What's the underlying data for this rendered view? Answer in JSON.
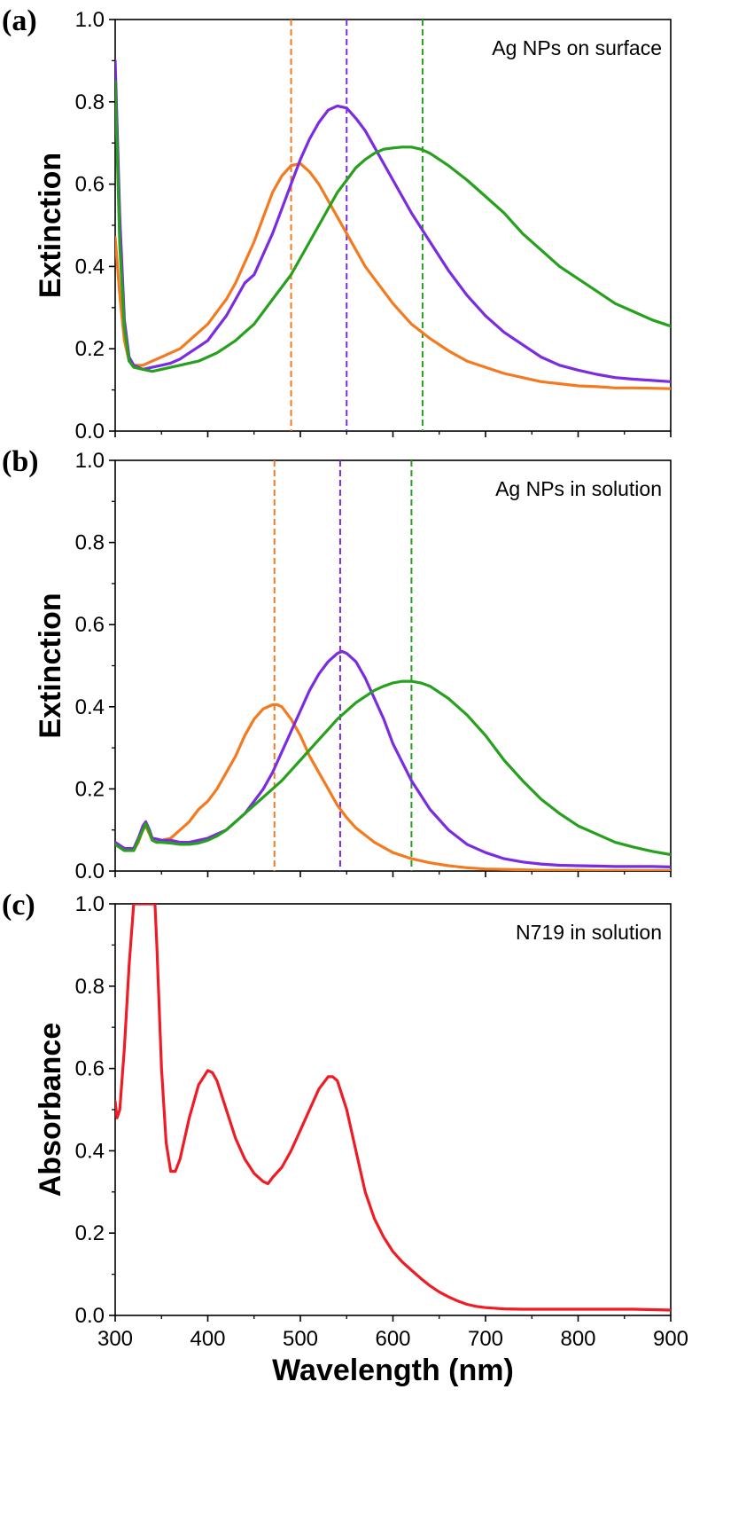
{
  "chart_data": [
    {
      "type": "line",
      "panel_label": "(a)",
      "annotation": "Ag NPs on surface",
      "ylabel": "Extinction",
      "xlabel": "",
      "xlim": [
        300,
        900
      ],
      "ylim": [
        0,
        1
      ],
      "xticks": [
        "300",
        "400",
        "500",
        "600",
        "700",
        "800",
        "900"
      ],
      "yticks": [
        "0.0",
        "0.2",
        "0.4",
        "0.6",
        "0.8",
        "1.0"
      ],
      "show_x_tick_labels": false,
      "grid": false,
      "series": [
        {
          "color": "#f47a20",
          "x": [
            300,
            305,
            310,
            315,
            320,
            330,
            340,
            350,
            360,
            370,
            380,
            390,
            400,
            410,
            420,
            430,
            440,
            450,
            460,
            470,
            480,
            490,
            500,
            510,
            520,
            530,
            540,
            550,
            560,
            570,
            580,
            600,
            620,
            640,
            660,
            680,
            700,
            720,
            740,
            760,
            780,
            800,
            820,
            840,
            860,
            880,
            900
          ],
          "y": [
            0.47,
            0.33,
            0.22,
            0.17,
            0.16,
            0.16,
            0.17,
            0.18,
            0.19,
            0.2,
            0.22,
            0.24,
            0.26,
            0.29,
            0.32,
            0.36,
            0.41,
            0.46,
            0.52,
            0.58,
            0.62,
            0.645,
            0.65,
            0.63,
            0.6,
            0.56,
            0.52,
            0.48,
            0.44,
            0.4,
            0.37,
            0.31,
            0.26,
            0.225,
            0.195,
            0.17,
            0.155,
            0.14,
            0.13,
            0.12,
            0.115,
            0.11,
            0.108,
            0.105,
            0.105,
            0.104,
            0.103
          ]
        },
        {
          "color": "#7b2be0",
          "x": [
            300,
            305,
            310,
            315,
            320,
            330,
            340,
            350,
            360,
            370,
            380,
            390,
            400,
            410,
            420,
            430,
            440,
            450,
            460,
            470,
            480,
            490,
            500,
            510,
            520,
            530,
            540,
            550,
            560,
            570,
            580,
            600,
            620,
            640,
            660,
            680,
            700,
            720,
            740,
            760,
            780,
            800,
            820,
            840,
            860,
            880,
            900
          ],
          "y": [
            0.9,
            0.52,
            0.27,
            0.18,
            0.16,
            0.15,
            0.155,
            0.16,
            0.165,
            0.175,
            0.19,
            0.205,
            0.22,
            0.25,
            0.28,
            0.32,
            0.36,
            0.38,
            0.43,
            0.48,
            0.54,
            0.6,
            0.66,
            0.71,
            0.75,
            0.78,
            0.79,
            0.785,
            0.76,
            0.73,
            0.69,
            0.61,
            0.53,
            0.46,
            0.39,
            0.33,
            0.28,
            0.24,
            0.21,
            0.18,
            0.16,
            0.148,
            0.138,
            0.13,
            0.126,
            0.123,
            0.12
          ]
        },
        {
          "color": "#27a01e",
          "x": [
            300,
            305,
            310,
            315,
            320,
            330,
            340,
            350,
            360,
            370,
            380,
            390,
            400,
            410,
            420,
            430,
            440,
            450,
            460,
            470,
            480,
            490,
            500,
            510,
            520,
            530,
            540,
            550,
            560,
            570,
            580,
            590,
            600,
            610,
            620,
            630,
            640,
            650,
            660,
            680,
            700,
            720,
            740,
            760,
            780,
            800,
            820,
            840,
            860,
            880,
            900
          ],
          "y": [
            0.85,
            0.45,
            0.25,
            0.17,
            0.155,
            0.15,
            0.145,
            0.15,
            0.155,
            0.16,
            0.165,
            0.17,
            0.18,
            0.19,
            0.205,
            0.22,
            0.24,
            0.26,
            0.29,
            0.32,
            0.35,
            0.38,
            0.42,
            0.46,
            0.5,
            0.54,
            0.58,
            0.61,
            0.64,
            0.66,
            0.675,
            0.685,
            0.688,
            0.69,
            0.69,
            0.685,
            0.675,
            0.66,
            0.645,
            0.61,
            0.57,
            0.53,
            0.48,
            0.44,
            0.4,
            0.37,
            0.34,
            0.31,
            0.29,
            0.27,
            0.255
          ]
        }
      ],
      "vlines": [
        {
          "x": 490,
          "color": "#f47a20"
        },
        {
          "x": 550,
          "color": "#7b2be0"
        },
        {
          "x": 632,
          "color": "#27a01e"
        }
      ]
    },
    {
      "type": "line",
      "panel_label": "(b)",
      "annotation": "Ag NPs in solution",
      "ylabel": "Extinction",
      "xlabel": "",
      "xlim": [
        300,
        900
      ],
      "ylim": [
        0,
        1
      ],
      "xticks": [
        "300",
        "400",
        "500",
        "600",
        "700",
        "800",
        "900"
      ],
      "yticks": [
        "0.0",
        "0.2",
        "0.4",
        "0.6",
        "0.8",
        "1.0"
      ],
      "show_x_tick_labels": false,
      "grid": false,
      "series": [
        {
          "color": "#f47a20",
          "x": [
            300,
            310,
            320,
            325,
            330,
            333,
            337,
            340,
            345,
            350,
            360,
            370,
            380,
            390,
            400,
            410,
            420,
            430,
            440,
            450,
            460,
            470,
            475,
            480,
            490,
            500,
            510,
            520,
            530,
            540,
            550,
            560,
            580,
            600,
            620,
            640,
            660,
            680,
            700,
            720,
            740,
            760,
            780,
            800,
            820,
            840,
            860,
            880,
            900
          ],
          "y": [
            0.065,
            0.05,
            0.05,
            0.07,
            0.1,
            0.11,
            0.09,
            0.075,
            0.07,
            0.075,
            0.08,
            0.1,
            0.12,
            0.15,
            0.17,
            0.2,
            0.24,
            0.28,
            0.33,
            0.37,
            0.395,
            0.405,
            0.405,
            0.4,
            0.37,
            0.33,
            0.28,
            0.24,
            0.2,
            0.16,
            0.13,
            0.105,
            0.07,
            0.045,
            0.03,
            0.02,
            0.013,
            0.008,
            0.005,
            0.004,
            0.003,
            0.002,
            0.002,
            0.002,
            0.001,
            0.001,
            0.001,
            0.001,
            0.001
          ]
        },
        {
          "color": "#7b2be0",
          "x": [
            300,
            310,
            320,
            325,
            330,
            333,
            337,
            340,
            345,
            350,
            360,
            370,
            380,
            390,
            400,
            410,
            420,
            430,
            440,
            450,
            460,
            470,
            480,
            490,
            500,
            510,
            520,
            530,
            540,
            545,
            550,
            560,
            570,
            580,
            590,
            600,
            620,
            640,
            660,
            680,
            700,
            720,
            740,
            760,
            780,
            800,
            820,
            840,
            860,
            880,
            900
          ],
          "y": [
            0.07,
            0.055,
            0.055,
            0.08,
            0.11,
            0.12,
            0.1,
            0.08,
            0.078,
            0.075,
            0.075,
            0.07,
            0.07,
            0.075,
            0.08,
            0.09,
            0.1,
            0.12,
            0.14,
            0.17,
            0.2,
            0.24,
            0.29,
            0.34,
            0.39,
            0.44,
            0.48,
            0.51,
            0.53,
            0.535,
            0.53,
            0.51,
            0.47,
            0.42,
            0.37,
            0.31,
            0.22,
            0.15,
            0.1,
            0.065,
            0.045,
            0.03,
            0.022,
            0.017,
            0.014,
            0.013,
            0.012,
            0.011,
            0.011,
            0.011,
            0.01
          ]
        },
        {
          "color": "#27a01e",
          "x": [
            300,
            310,
            320,
            325,
            330,
            333,
            337,
            340,
            345,
            350,
            360,
            370,
            380,
            390,
            400,
            410,
            420,
            430,
            440,
            450,
            460,
            470,
            480,
            490,
            500,
            510,
            520,
            530,
            540,
            550,
            560,
            570,
            580,
            590,
            600,
            610,
            620,
            630,
            640,
            660,
            680,
            700,
            720,
            740,
            760,
            780,
            800,
            820,
            840,
            860,
            880,
            900
          ],
          "y": [
            0.065,
            0.05,
            0.05,
            0.075,
            0.1,
            0.115,
            0.095,
            0.075,
            0.07,
            0.07,
            0.068,
            0.065,
            0.065,
            0.068,
            0.075,
            0.085,
            0.1,
            0.12,
            0.14,
            0.16,
            0.18,
            0.2,
            0.22,
            0.245,
            0.27,
            0.295,
            0.32,
            0.345,
            0.37,
            0.39,
            0.41,
            0.425,
            0.44,
            0.45,
            0.458,
            0.462,
            0.462,
            0.458,
            0.45,
            0.42,
            0.38,
            0.33,
            0.27,
            0.22,
            0.175,
            0.14,
            0.11,
            0.09,
            0.07,
            0.058,
            0.048,
            0.04
          ]
        }
      ],
      "vlines": [
        {
          "x": 472,
          "color": "#f47a20"
        },
        {
          "x": 543,
          "color": "#7b2be0"
        },
        {
          "x": 620,
          "color": "#27a01e"
        }
      ]
    },
    {
      "type": "line",
      "panel_label": "(c)",
      "annotation": "N719 in solution",
      "ylabel": "Absorbance",
      "xlabel": "Wavelength (nm)",
      "xlim": [
        300,
        900
      ],
      "ylim": [
        0,
        1
      ],
      "xticks": [
        "300",
        "400",
        "500",
        "600",
        "700",
        "800",
        "900"
      ],
      "yticks": [
        "0.0",
        "0.2",
        "0.4",
        "0.6",
        "0.8",
        "1.0"
      ],
      "show_x_tick_labels": true,
      "grid": false,
      "series": [
        {
          "color": "#ee1c25",
          "x": [
            300,
            302,
            305,
            310,
            315,
            320,
            322,
            343,
            345,
            350,
            355,
            360,
            365,
            370,
            380,
            390,
            400,
            405,
            410,
            420,
            430,
            440,
            450,
            460,
            465,
            470,
            480,
            490,
            500,
            510,
            520,
            530,
            535,
            540,
            550,
            560,
            570,
            580,
            590,
            600,
            610,
            620,
            630,
            640,
            650,
            660,
            670,
            680,
            690,
            700,
            720,
            740,
            760,
            780,
            800,
            820,
            840,
            860,
            880,
            900
          ],
          "y": [
            0.52,
            0.48,
            0.5,
            0.65,
            0.85,
            1.0,
            1.0,
            1.0,
            0.9,
            0.6,
            0.42,
            0.35,
            0.35,
            0.38,
            0.48,
            0.56,
            0.595,
            0.59,
            0.57,
            0.5,
            0.43,
            0.38,
            0.345,
            0.325,
            0.32,
            0.335,
            0.36,
            0.4,
            0.45,
            0.5,
            0.55,
            0.58,
            0.58,
            0.57,
            0.5,
            0.4,
            0.3,
            0.235,
            0.19,
            0.155,
            0.13,
            0.11,
            0.09,
            0.072,
            0.057,
            0.045,
            0.035,
            0.027,
            0.022,
            0.019,
            0.016,
            0.015,
            0.015,
            0.015,
            0.015,
            0.015,
            0.015,
            0.015,
            0.014,
            0.013
          ]
        }
      ],
      "vlines": []
    }
  ]
}
